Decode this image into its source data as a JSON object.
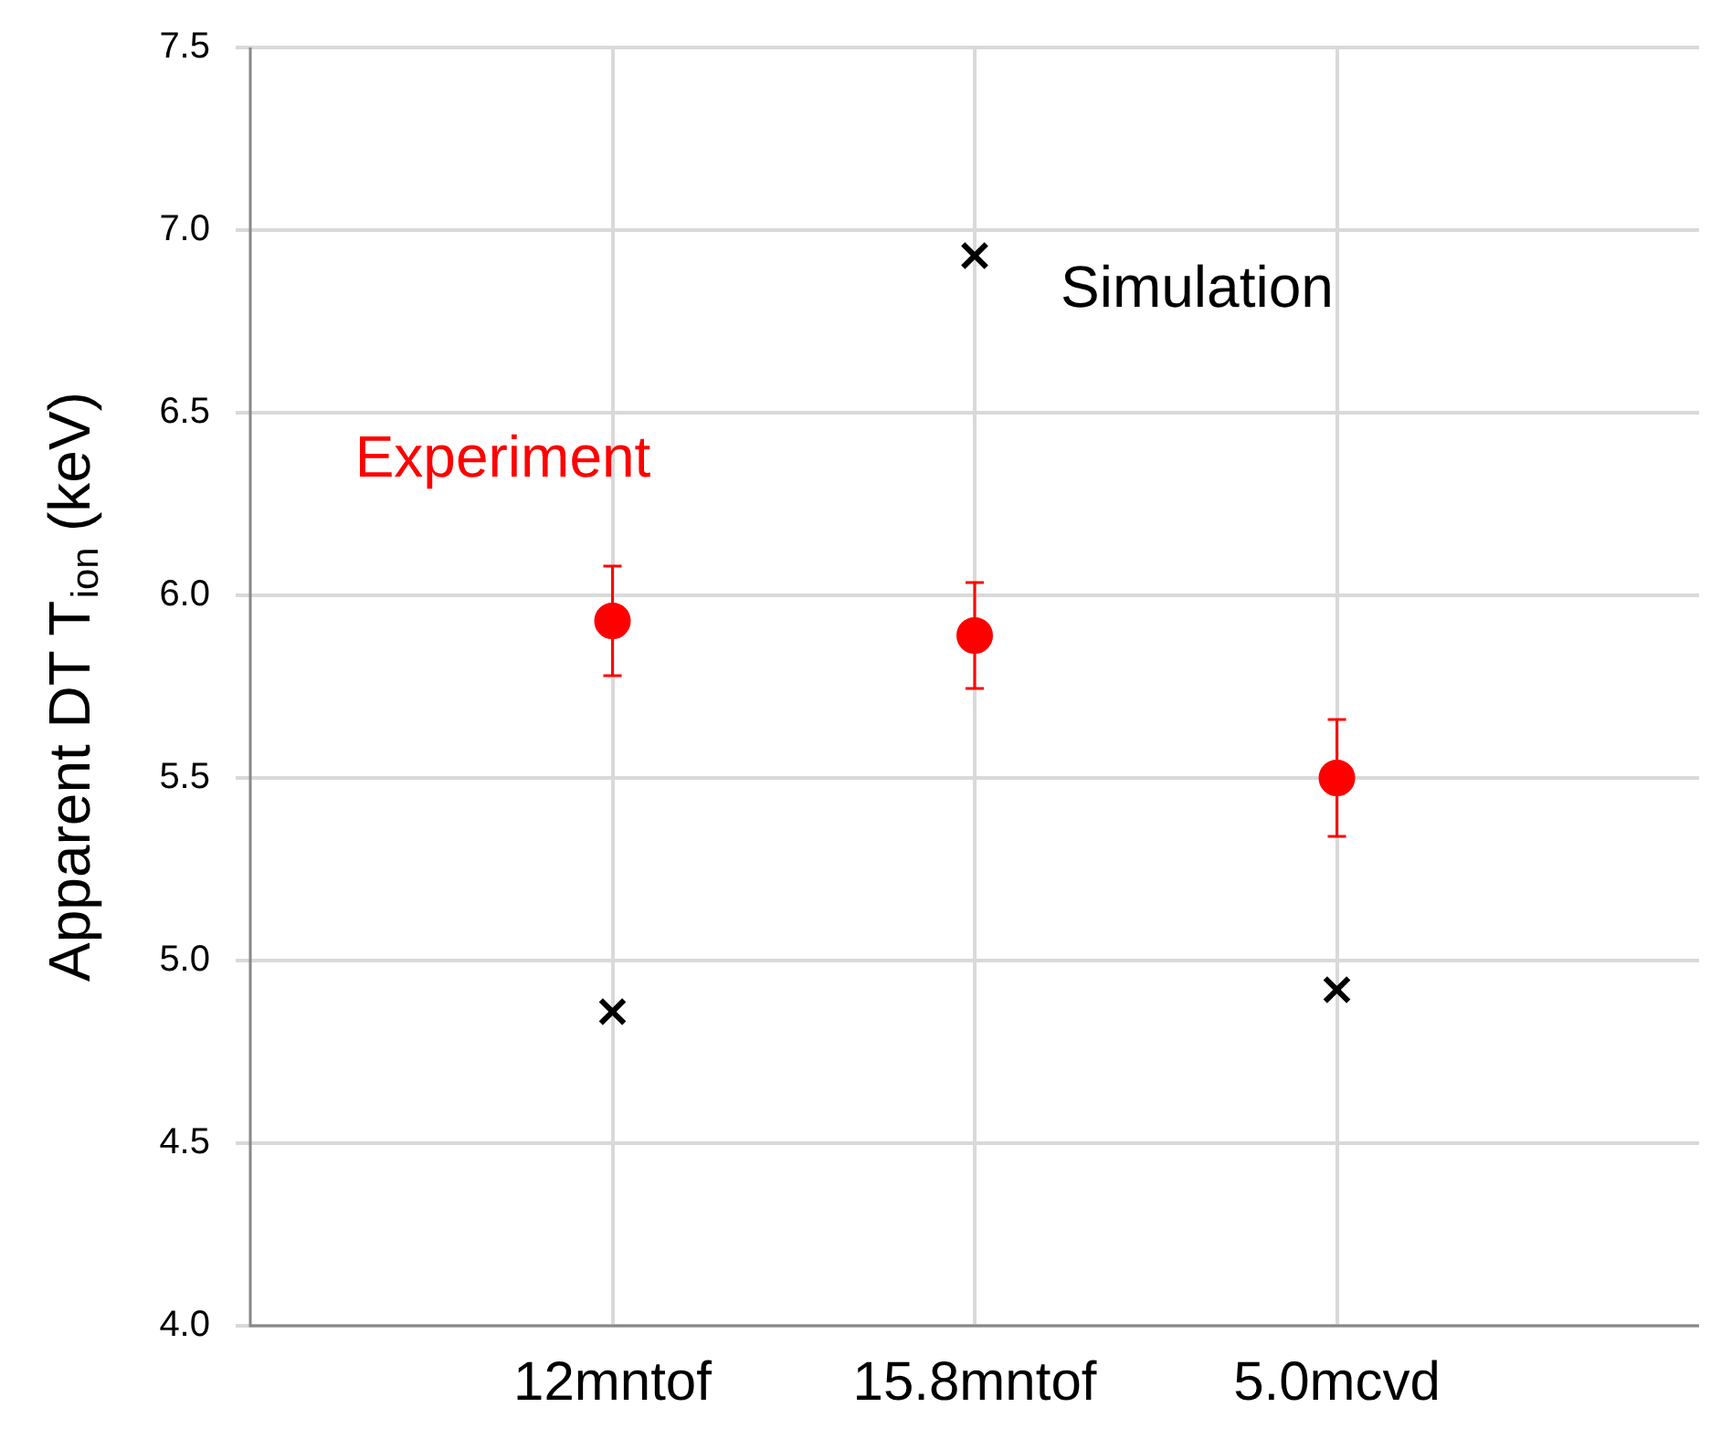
{
  "chart_data": {
    "type": "scatter",
    "ylabel": "Apparent DT T$_{ion}$ (keV)",
    "categories": [
      "12mntof",
      "15.8mntof",
      "5.0mcvd"
    ],
    "ylim": [
      4,
      7.5
    ],
    "yticks": [
      {
        "value": 4,
        "label": "4.0"
      },
      {
        "value": 4.5,
        "label": "4.5"
      },
      {
        "value": 5,
        "label": "5.0"
      },
      {
        "value": 5.5,
        "label": "5.5"
      },
      {
        "value": 6,
        "label": "6.0"
      },
      {
        "value": 6.5,
        "label": "6.5"
      },
      {
        "value": 7,
        "label": "7.0"
      },
      {
        "value": 7.5,
        "label": "7.5"
      }
    ],
    "grid": true,
    "legend": false,
    "series": [
      {
        "name": "Experiment",
        "color": "#ff0000",
        "marker": "circle",
        "values": [
          5.93,
          5.89,
          5.5
        ],
        "errors": [
          0.15,
          0.145,
          0.16
        ]
      },
      {
        "name": "Simulation",
        "color": "#000000",
        "marker": "cross",
        "values": [
          4.86,
          6.93,
          4.92
        ]
      }
    ]
  }
}
